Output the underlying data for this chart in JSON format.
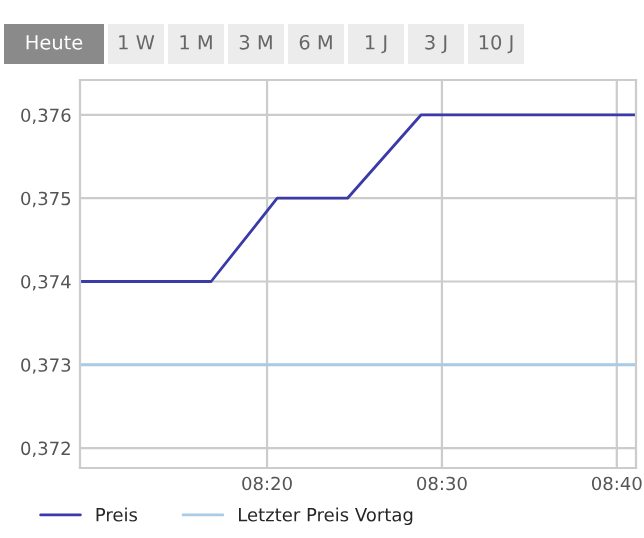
{
  "chart_data": {
    "type": "line",
    "annotations": [
      "Heute",
      "1 W",
      "1 M",
      "3 M",
      "6 M",
      "1 J",
      "3 J",
      "10 J"
    ],
    "series": [
      {
        "name": "Preis",
        "color": "#3a3aa8",
        "x": [
          8.155,
          8.28,
          8.343,
          8.41,
          8.48,
          8.685
        ],
        "values": [
          0.374,
          0.374,
          0.375,
          0.375,
          0.376,
          0.376
        ]
      },
      {
        "name": "Letzter Preis Vortag",
        "color": "#a9cbe6",
        "x": [
          8.155,
          8.685
        ],
        "values": [
          0.373,
          0.373
        ]
      }
    ],
    "xlim": [
      8.155,
      8.685
    ],
    "xticks": [
      {
        "value": 8.3333,
        "label": "08:20"
      },
      {
        "value": 8.5,
        "label": "08:30"
      },
      {
        "value": 8.6667,
        "label": "08:40"
      }
    ],
    "ylim": [
      0.37176,
      0.37642
    ],
    "yticks": [
      {
        "value": 0.372,
        "label": "0,372"
      },
      {
        "value": 0.373,
        "label": "0,373"
      },
      {
        "value": 0.374,
        "label": "0,374"
      },
      {
        "value": 0.375,
        "label": "0,375"
      },
      {
        "value": 0.376,
        "label": "0,376"
      }
    ],
    "grid": true,
    "legend": "bottom"
  }
}
